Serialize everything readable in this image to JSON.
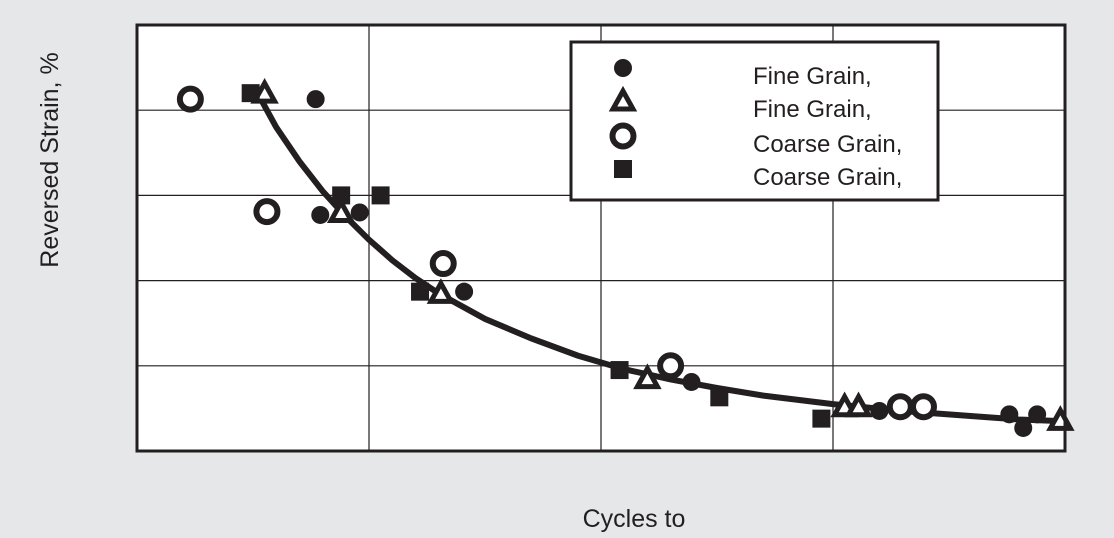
{
  "chart_data": {
    "type": "scatter",
    "title": "",
    "xlabel": "Cycles to",
    "ylabel": "Reversed Strain, %",
    "xlim": [
      0,
      4
    ],
    "ylim": [
      0,
      5
    ],
    "grid": true,
    "legend_position": "top-right",
    "colors": {
      "background": "#e6e7e8",
      "plot": "#ffffff",
      "ink": "#231f20"
    },
    "series": [
      {
        "name": "Fine Grain,",
        "marker": "filled-circle",
        "points": [
          {
            "x": 0.77,
            "y": 4.13
          },
          {
            "x": 0.79,
            "y": 2.77
          },
          {
            "x": 0.96,
            "y": 2.8
          },
          {
            "x": 1.41,
            "y": 1.87
          },
          {
            "x": 2.39,
            "y": 0.81
          },
          {
            "x": 3.2,
            "y": 0.47
          },
          {
            "x": 3.76,
            "y": 0.43
          },
          {
            "x": 3.82,
            "y": 0.27
          },
          {
            "x": 3.88,
            "y": 0.43
          }
        ]
      },
      {
        "name": "Fine Grain,",
        "marker": "open-triangle",
        "points": [
          {
            "x": 0.55,
            "y": 4.2
          },
          {
            "x": 0.88,
            "y": 2.8
          },
          {
            "x": 1.31,
            "y": 1.85
          },
          {
            "x": 2.2,
            "y": 0.85
          },
          {
            "x": 3.05,
            "y": 0.52
          },
          {
            "x": 3.11,
            "y": 0.52
          },
          {
            "x": 3.98,
            "y": 0.36
          }
        ]
      },
      {
        "name": "Coarse Grain,",
        "marker": "open-circle",
        "points": [
          {
            "x": 0.23,
            "y": 4.13
          },
          {
            "x": 0.56,
            "y": 2.81
          },
          {
            "x": 1.32,
            "y": 2.2
          },
          {
            "x": 2.3,
            "y": 1.0
          },
          {
            "x": 3.29,
            "y": 0.52
          },
          {
            "x": 3.39,
            "y": 0.52
          }
        ]
      },
      {
        "name": "Coarse Grain,",
        "marker": "filled-square",
        "points": [
          {
            "x": 0.49,
            "y": 4.2
          },
          {
            "x": 0.88,
            "y": 3.0
          },
          {
            "x": 1.05,
            "y": 3.0
          },
          {
            "x": 1.22,
            "y": 1.87
          },
          {
            "x": 2.08,
            "y": 0.95
          },
          {
            "x": 2.51,
            "y": 0.63
          },
          {
            "x": 2.95,
            "y": 0.38
          }
        ]
      }
    ],
    "fit_curve": [
      {
        "x": 0.52,
        "y": 4.2
      },
      {
        "x": 0.6,
        "y": 3.8
      },
      {
        "x": 0.7,
        "y": 3.4
      },
      {
        "x": 0.8,
        "y": 3.05
      },
      {
        "x": 0.9,
        "y": 2.75
      },
      {
        "x": 1.0,
        "y": 2.48
      },
      {
        "x": 1.1,
        "y": 2.24
      },
      {
        "x": 1.2,
        "y": 2.03
      },
      {
        "x": 1.3,
        "y": 1.85
      },
      {
        "x": 1.5,
        "y": 1.55
      },
      {
        "x": 1.7,
        "y": 1.32
      },
      {
        "x": 1.9,
        "y": 1.12
      },
      {
        "x": 2.1,
        "y": 0.96
      },
      {
        "x": 2.3,
        "y": 0.84
      },
      {
        "x": 2.5,
        "y": 0.74
      },
      {
        "x": 2.7,
        "y": 0.65
      },
      {
        "x": 3.0,
        "y": 0.55
      },
      {
        "x": 3.3,
        "y": 0.47
      },
      {
        "x": 3.6,
        "y": 0.41
      },
      {
        "x": 3.8,
        "y": 0.37
      },
      {
        "x": 4.0,
        "y": 0.35
      }
    ]
  }
}
